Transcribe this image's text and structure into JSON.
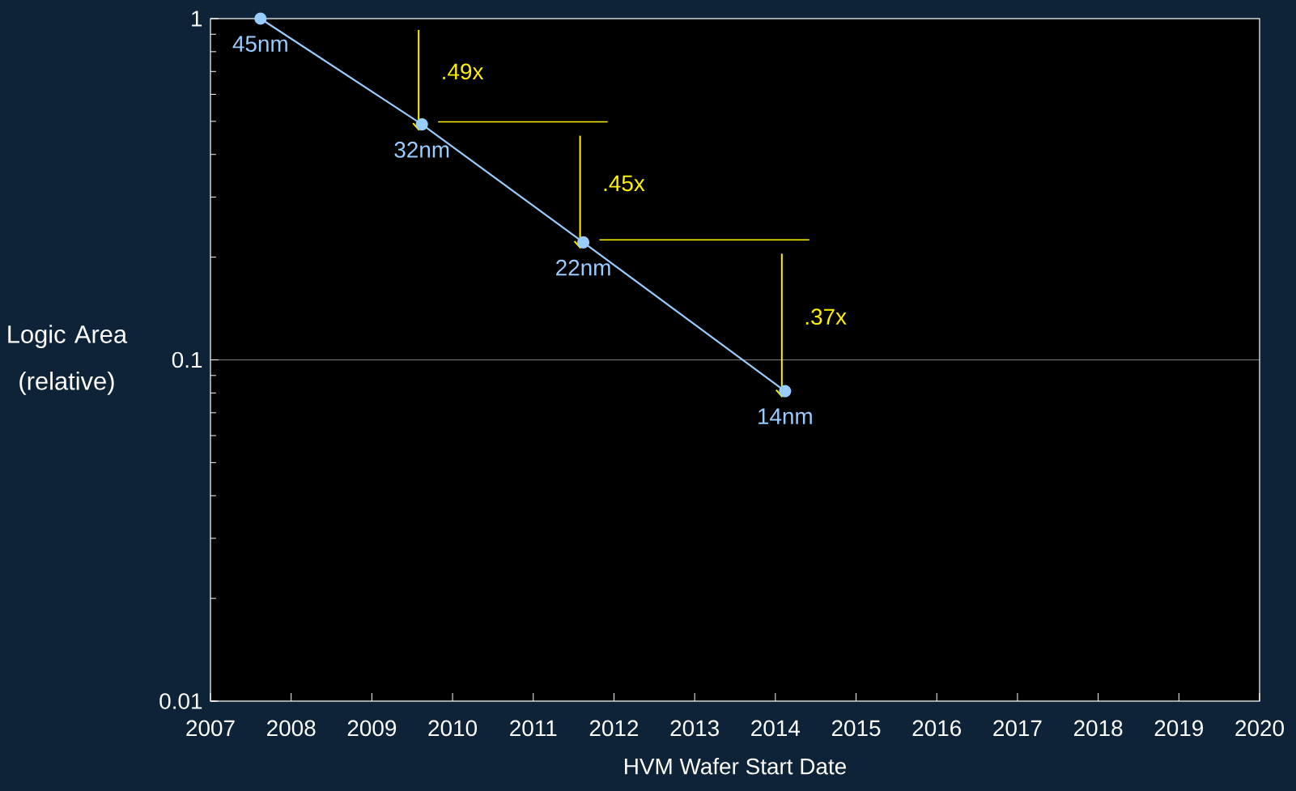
{
  "chart_data": {
    "type": "line",
    "xlabel": "HVM Wafer Start Date",
    "ylabel": "Logic Area (relative)",
    "x": [
      2007.62,
      2009.62,
      2011.62,
      2014.12
    ],
    "series": [
      {
        "color": "#99ccff",
        "values": [
          1,
          0.49,
          0.221,
          0.081
        ]
      }
    ],
    "xlim": [
      2007,
      2020
    ],
    "xticks": [
      2007,
      2008,
      2009,
      2010,
      2011,
      2012,
      2013,
      2014,
      2015,
      2016,
      2017,
      2018,
      2019,
      2020
    ],
    "ylim": [
      0.01,
      1
    ],
    "yticks": [
      0.01,
      0.1,
      1
    ],
    "log": "y",
    "grid": "y",
    "marker": "circle",
    "line_style": "solid",
    "annotations": [
      {
        "text": "45nm",
        "x": 2007.62,
        "y": 1
      },
      {
        "text": "32nm",
        "x": 2009.62,
        "y": 0.49
      },
      {
        "text": "22nm",
        "x": 2011.62,
        "y": 0.221
      },
      {
        "text": "14nm",
        "x": 2014.12,
        "y": 0.081
      },
      ".49x",
      ".45x",
      ".37x"
    ]
  }
}
